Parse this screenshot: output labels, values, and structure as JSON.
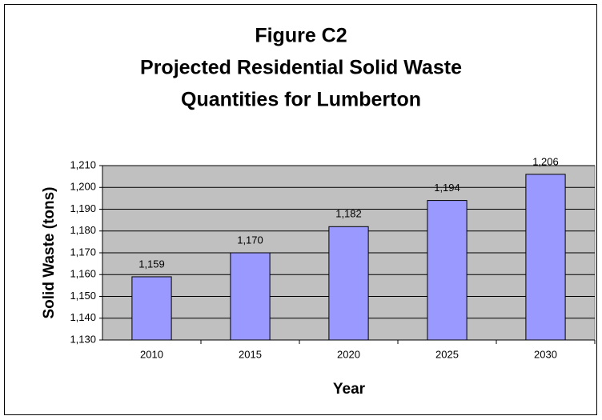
{
  "chart_data": {
    "type": "bar",
    "title": [
      "Figure C2",
      "Projected Residential Solid Waste",
      "Quantities for Lumberton"
    ],
    "x_label": "Year",
    "y_label": "Solid Waste (tons)",
    "categories": [
      "2010",
      "2015",
      "2020",
      "2025",
      "2030"
    ],
    "values": [
      1159,
      1170,
      1182,
      1194,
      1206
    ],
    "value_labels": [
      "1,159",
      "1,170",
      "1,182",
      "1,194",
      "1,206"
    ],
    "color": "#9999ff",
    "plot_background": "#c0c0c0",
    "ylim": [
      1130,
      1210
    ],
    "yticks": [
      {
        "value": 1130,
        "label": "1,130"
      },
      {
        "value": 1140,
        "label": "1,140"
      },
      {
        "value": 1150,
        "label": "1,150"
      },
      {
        "value": 1160,
        "label": "1,160"
      },
      {
        "value": 1170,
        "label": "1,170"
      },
      {
        "value": 1180,
        "label": "1,180"
      },
      {
        "value": 1190,
        "label": "1,190"
      },
      {
        "value": 1200,
        "label": "1,200"
      },
      {
        "value": 1210,
        "label": "1,210"
      }
    ],
    "grid": true
  }
}
